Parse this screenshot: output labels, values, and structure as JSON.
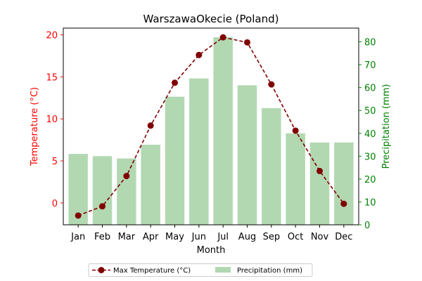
{
  "chart_data": {
    "type": "bar",
    "title": "WarszawaOkecie (Poland)",
    "xlabel": "Month",
    "ylabel_left": "Temperature (°C)",
    "ylabel_right": "Precipitation (mm)",
    "categories": [
      "Jan",
      "Feb",
      "Mar",
      "Apr",
      "May",
      "Jun",
      "Jul",
      "Aug",
      "Sep",
      "Oct",
      "Nov",
      "Dec"
    ],
    "series": [
      {
        "name": "Max Temperature (°C)",
        "type": "line",
        "axis": "left",
        "color": "#800000",
        "values": [
          -1.5,
          -0.4,
          3.2,
          9.2,
          14.3,
          17.6,
          19.7,
          19.1,
          14.1,
          8.6,
          3.8,
          -0.1
        ]
      },
      {
        "name": "Precipitation (mm)",
        "type": "bar",
        "axis": "right",
        "color": "#b2d8b2",
        "values": [
          31,
          30,
          29,
          35,
          56,
          64,
          82,
          61,
          51,
          40,
          36,
          36
        ]
      }
    ],
    "ylim_left": [
      -2.6,
      20.8
    ],
    "ylim_right": [
      0,
      86
    ],
    "yticks_left": [
      0,
      5,
      10,
      15,
      20
    ],
    "yticks_right": [
      0,
      10,
      20,
      30,
      40,
      50,
      60,
      70,
      80
    ],
    "left_axis_color": "#ff0000",
    "right_axis_color": "#008000",
    "grid": false,
    "legend_position": "bottom-center"
  }
}
